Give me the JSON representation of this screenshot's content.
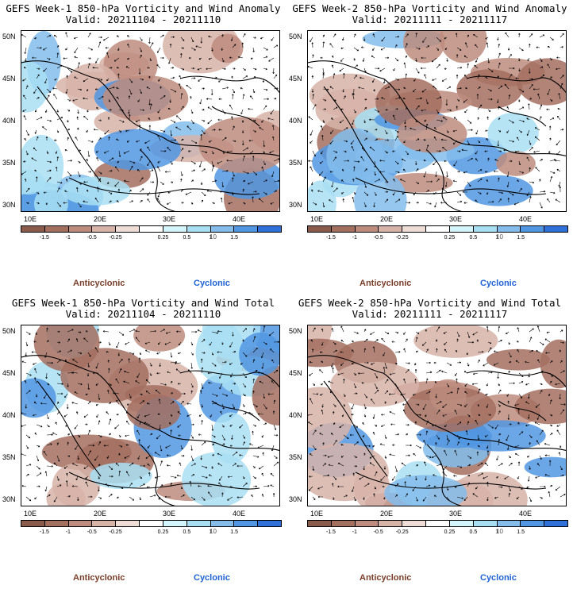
{
  "colors": {
    "anticyclonic": "#7a3e2a",
    "cyclonic": "#1f62d6",
    "scale": [
      "#8a5a4a",
      "#a36f5f",
      "#bd8c7e",
      "#d7b3a8",
      "#efdcd5",
      "#ffffff",
      "#d2f6fb",
      "#a9dff3",
      "#84bdec",
      "#5196e2",
      "#2f71d9"
    ]
  },
  "lat_labels": [
    "50N",
    "45N",
    "40N",
    "35N",
    "30N"
  ],
  "lon_labels": [
    "10E",
    "20E",
    "30E",
    "40E"
  ],
  "colorbar_ticks": [
    "-1.5",
    "-1",
    "-0.5",
    "-0.25",
    "0.25",
    "0.5",
    "1",
    "1.5"
  ],
  "colorbar_unit": "10",
  "legend": {
    "anticyclonic": "Anticyclonic",
    "cyclonic": "Cyclonic"
  },
  "panels": [
    {
      "title": "GEFS Week-1 850-hPa Vorticity and Wind Anomaly",
      "valid": "Valid: 20211104 - 20211110"
    },
    {
      "title": "GEFS Week-2 850-hPa Vorticity and Wind Anomaly",
      "valid": "Valid: 20211111 - 20211117"
    },
    {
      "title": "GEFS Week-1 850-hPa Vorticity and Wind Total",
      "valid": "Valid: 20211104 - 20211110"
    },
    {
      "title": "GEFS Week-2 850-hPa Vorticity and Wind Total",
      "valid": "Valid: 20211111 - 20211117"
    }
  ]
}
